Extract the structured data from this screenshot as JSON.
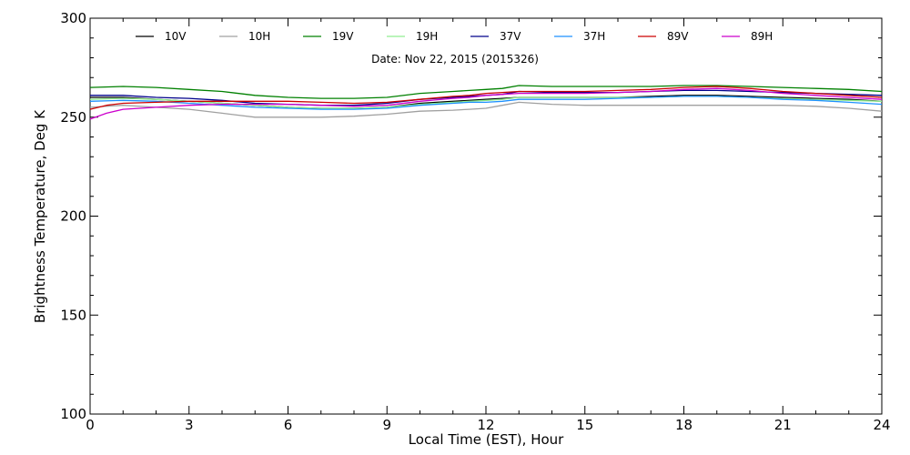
{
  "chart_data": {
    "type": "line",
    "title": "",
    "subtitle": "Date: Nov 22, 2015 (2015326)",
    "xlabel": "Local Time (EST), Hour",
    "ylabel": "Brightness Temperature, Deg K",
    "xlim": [
      0,
      24
    ],
    "ylim": [
      100,
      300
    ],
    "xticks": [
      "0",
      "3",
      "6",
      "9",
      "12",
      "15",
      "18",
      "21",
      "24"
    ],
    "yticks": [
      "100",
      "150",
      "200",
      "250",
      "300"
    ],
    "grid": false,
    "legend_position": "top",
    "series": [
      {
        "name": "10V",
        "color": "#000000",
        "x": [
          0,
          1,
          2,
          3,
          4,
          5,
          6,
          7,
          8,
          9,
          10,
          11,
          11.5,
          12,
          12.5,
          13,
          14,
          15,
          16,
          17,
          18,
          19,
          20,
          21,
          22,
          23,
          24
        ],
        "y": [
          260,
          260,
          259,
          258,
          257,
          256,
          255,
          254.5,
          254.5,
          255,
          257,
          258,
          258.5,
          259,
          259.5,
          260,
          260,
          260,
          260,
          260.5,
          261,
          261,
          260.5,
          260,
          259.5,
          259,
          258
        ]
      },
      {
        "name": "10H",
        "color": "#a0a0a0",
        "x": [
          0,
          1,
          2,
          3,
          4,
          5,
          6,
          7,
          8,
          9,
          10,
          11,
          11.5,
          12,
          12.5,
          13,
          14,
          15,
          16,
          17,
          18,
          19,
          20,
          21,
          22,
          23,
          24
        ],
        "y": [
          255,
          256,
          255,
          254,
          252,
          250,
          250,
          250,
          250.5,
          251.5,
          253,
          253.5,
          254,
          254.5,
          256,
          257.5,
          256.5,
          256,
          256,
          256,
          256,
          256,
          256,
          256,
          255.5,
          254.5,
          253
        ]
      },
      {
        "name": "19V",
        "color": "#008000",
        "x": [
          0,
          1,
          2,
          3,
          4,
          5,
          6,
          7,
          8,
          9,
          10,
          11,
          11.5,
          12,
          12.5,
          13,
          14,
          15,
          16,
          17,
          18,
          19,
          20,
          21,
          22,
          23,
          24
        ],
        "y": [
          265,
          265.5,
          265,
          264,
          263,
          261,
          260,
          259.5,
          259.5,
          260,
          262,
          263,
          263.5,
          264,
          264.5,
          266,
          265.5,
          265.5,
          265.5,
          265.5,
          266,
          266,
          265.5,
          265,
          264.5,
          264,
          263
        ]
      },
      {
        "name": "19H",
        "color": "#90ee90",
        "x": [
          0,
          1,
          2,
          3,
          4,
          5,
          6,
          7,
          8,
          9,
          10,
          11,
          11.5,
          12,
          12.5,
          13,
          14,
          15,
          16,
          17,
          18,
          19,
          20,
          21,
          22,
          23,
          24
        ],
        "y": [
          259,
          259.5,
          259,
          258,
          257,
          256,
          255,
          254.5,
          254.5,
          255,
          256.5,
          257.5,
          258,
          258.5,
          259,
          260,
          260,
          260,
          260,
          260,
          260.5,
          260.5,
          260,
          259.5,
          259,
          258.5,
          258
        ]
      },
      {
        "name": "37V",
        "color": "#00008b",
        "x": [
          0,
          1,
          2,
          3,
          4,
          5,
          6,
          7,
          8,
          9,
          10,
          11,
          11.5,
          12,
          12.5,
          13,
          14,
          15,
          16,
          17,
          18,
          19,
          20,
          21,
          22,
          23,
          24
        ],
        "y": [
          261,
          261,
          260,
          259.5,
          258.5,
          257,
          256.5,
          256,
          256,
          257,
          259,
          260,
          260.5,
          261,
          261.5,
          263,
          262.5,
          262.5,
          262.5,
          263,
          263.5,
          263.5,
          263,
          262.5,
          262,
          261.5,
          261
        ]
      },
      {
        "name": "37H",
        "color": "#1e90ff",
        "x": [
          0,
          1,
          2,
          3,
          4,
          5,
          6,
          7,
          8,
          9,
          10,
          11,
          11.5,
          12,
          12.5,
          13,
          14,
          15,
          16,
          17,
          18,
          19,
          20,
          21,
          22,
          23,
          24
        ],
        "y": [
          258,
          258.5,
          258,
          257,
          256,
          255,
          254.5,
          254,
          254,
          254.5,
          256,
          257,
          257.5,
          257.5,
          258,
          259,
          259,
          259,
          259.5,
          260,
          260.5,
          260.5,
          260,
          259,
          258.5,
          257.5,
          256.5
        ]
      },
      {
        "name": "89V",
        "color": "#cc0000",
        "x": [
          0,
          0.5,
          1,
          2,
          3,
          4,
          5,
          6,
          7,
          8,
          9,
          10,
          11,
          11.5,
          12,
          12.5,
          13,
          14,
          15,
          16,
          17,
          18,
          19,
          20,
          21,
          22,
          23,
          24
        ],
        "y": [
          254,
          256,
          257,
          257.5,
          258,
          258,
          258,
          258,
          257.5,
          257,
          257.5,
          259,
          260.5,
          261,
          262,
          262.5,
          263,
          263,
          263,
          263.5,
          264,
          265,
          265.5,
          264.5,
          263,
          262,
          261,
          260
        ]
      },
      {
        "name": "89H",
        "color": "#cc00cc",
        "x": [
          0,
          0.5,
          1,
          2,
          3,
          4,
          5,
          6,
          7,
          8,
          9,
          10,
          11,
          11.5,
          12,
          12.5,
          13,
          14,
          15,
          16,
          17,
          18,
          19,
          20,
          21,
          22,
          23,
          24
        ],
        "y": [
          249,
          252,
          254,
          255,
          256,
          256.5,
          256.5,
          256.5,
          256,
          255.5,
          256,
          258,
          259.5,
          260,
          261,
          261.5,
          262,
          262,
          262,
          262.5,
          263,
          264,
          264.5,
          263.5,
          262,
          261,
          260,
          259
        ]
      }
    ]
  }
}
